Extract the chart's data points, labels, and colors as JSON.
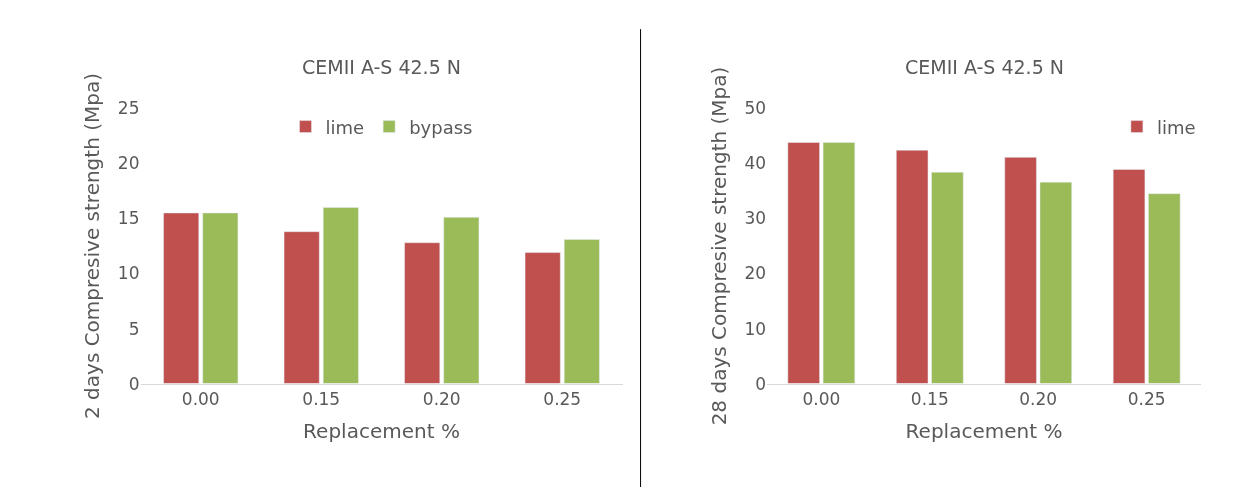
{
  "chart_data": [
    {
      "type": "bar",
      "title": "CEMII A-S 42.5 N",
      "xlabel": "Replacement %",
      "ylabel": "2 days Compresive strength (Mpa)",
      "categories": [
        "0.00",
        "0.15",
        "0.20",
        "0.25"
      ],
      "ylim": [
        0,
        25
      ],
      "yticks": [
        0,
        5,
        10,
        15,
        20,
        25
      ],
      "legend": "top",
      "grid": false,
      "series": [
        {
          "name": "lime",
          "color": "#c0504d",
          "values": [
            15.5,
            13.8,
            12.8,
            11.9
          ]
        },
        {
          "name": "bypass",
          "color": "#9bbb59",
          "values": [
            15.5,
            16.0,
            15.1,
            13.1
          ]
        }
      ]
    },
    {
      "type": "bar",
      "title": "CEMII A-S 42.5 N",
      "xlabel": "Replacement %",
      "ylabel": "28 days Compresive strength (Mpa)",
      "categories": [
        "0.00",
        "0.15",
        "0.20",
        "0.25"
      ],
      "ylim": [
        0,
        50
      ],
      "yticks": [
        0,
        10,
        20,
        30,
        40,
        50
      ],
      "legend": "top right",
      "grid": false,
      "series": [
        {
          "name": "lime",
          "color": "#c0504d",
          "values": [
            43.8,
            42.4,
            41.1,
            38.9
          ]
        },
        {
          "color": "#9bbb59",
          "values": [
            43.8,
            38.4,
            36.6,
            34.5
          ]
        }
      ]
    }
  ]
}
